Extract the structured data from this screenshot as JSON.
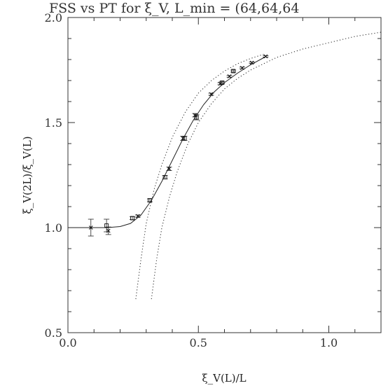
{
  "chart_data": {
    "type": "scatter",
    "title": "FSS vs PT for ξ_V, L_min = (64,64,64",
    "xlabel": "ξ_V(L)/L",
    "ylabel": "ξ_V(2L)/ξ_V(L)",
    "xlim": [
      0.0,
      1.2
    ],
    "ylim": [
      0.5,
      2.0
    ],
    "x_ticks": [
      "0.0",
      "0.5",
      "1.0"
    ],
    "y_ticks": [
      "0.5",
      "1.0",
      "1.5",
      "2.0"
    ],
    "grid": false,
    "series": [
      {
        "marker": "x",
        "points": [
          {
            "x": 0.088,
            "y": 1.0,
            "err": 0.04
          },
          {
            "x": 0.155,
            "y": 0.985,
            "err": 0.018
          },
          {
            "x": 0.268,
            "y": 1.055,
            "err": 0.005
          },
          {
            "x": 0.388,
            "y": 1.28,
            "err": 0.008
          },
          {
            "x": 0.441,
            "y": 1.425,
            "err": 0.01
          },
          {
            "x": 0.487,
            "y": 1.535,
            "err": 0.008
          },
          {
            "x": 0.549,
            "y": 1.635,
            "err": 0.005
          },
          {
            "x": 0.584,
            "y": 1.685,
            "err": 0.005
          },
          {
            "x": 0.619,
            "y": 1.72,
            "err": 0.004
          },
          {
            "x": 0.668,
            "y": 1.76,
            "err": 0.004
          },
          {
            "x": 0.705,
            "y": 1.785,
            "err": 0.003
          },
          {
            "x": 0.758,
            "y": 1.815,
            "err": 0.003
          }
        ]
      },
      {
        "marker": "square",
        "points": [
          {
            "x": 0.148,
            "y": 1.01,
            "err": 0.03
          },
          {
            "x": 0.247,
            "y": 1.045,
            "err": 0.007
          },
          {
            "x": 0.314,
            "y": 1.13,
            "err": 0.007
          },
          {
            "x": 0.372,
            "y": 1.24,
            "err": 0.008
          },
          {
            "x": 0.447,
            "y": 1.425,
            "err": 0.01
          },
          {
            "x": 0.493,
            "y": 1.525,
            "err": 0.012
          },
          {
            "x": 0.591,
            "y": 1.69,
            "err": 0.006
          },
          {
            "x": 0.634,
            "y": 1.745,
            "err": 0.005
          }
        ]
      }
    ],
    "curves": [
      {
        "style": "solid",
        "points": [
          [
            0.0,
            1.0
          ],
          [
            0.15,
            1.0
          ],
          [
            0.2,
            1.005
          ],
          [
            0.24,
            1.02
          ],
          [
            0.28,
            1.06
          ],
          [
            0.32,
            1.13
          ],
          [
            0.36,
            1.22
          ],
          [
            0.4,
            1.32
          ],
          [
            0.44,
            1.42
          ],
          [
            0.48,
            1.51
          ],
          [
            0.52,
            1.585
          ],
          [
            0.56,
            1.645
          ],
          [
            0.6,
            1.69
          ],
          [
            0.65,
            1.735
          ],
          [
            0.7,
            1.775
          ],
          [
            0.76,
            1.815
          ]
        ]
      },
      {
        "style": "dotted",
        "points": [
          [
            0.26,
            0.66
          ],
          [
            0.28,
            0.85
          ],
          [
            0.3,
            1.02
          ],
          [
            0.33,
            1.18
          ],
          [
            0.36,
            1.3
          ],
          [
            0.4,
            1.43
          ],
          [
            0.45,
            1.55
          ],
          [
            0.5,
            1.64
          ],
          [
            0.55,
            1.7
          ],
          [
            0.6,
            1.745
          ],
          [
            0.65,
            1.78
          ],
          [
            0.7,
            1.805
          ],
          [
            0.75,
            1.825
          ]
        ]
      },
      {
        "style": "dotted",
        "points": [
          [
            0.32,
            0.66
          ],
          [
            0.34,
            0.85
          ],
          [
            0.36,
            1.0
          ],
          [
            0.39,
            1.15
          ],
          [
            0.42,
            1.27
          ],
          [
            0.46,
            1.4
          ],
          [
            0.5,
            1.5
          ],
          [
            0.55,
            1.59
          ],
          [
            0.6,
            1.66
          ],
          [
            0.65,
            1.71
          ],
          [
            0.7,
            1.75
          ],
          [
            0.8,
            1.81
          ],
          [
            0.9,
            1.85
          ],
          [
            1.0,
            1.88
          ],
          [
            1.1,
            1.91
          ],
          [
            1.2,
            1.93
          ]
        ]
      }
    ]
  }
}
